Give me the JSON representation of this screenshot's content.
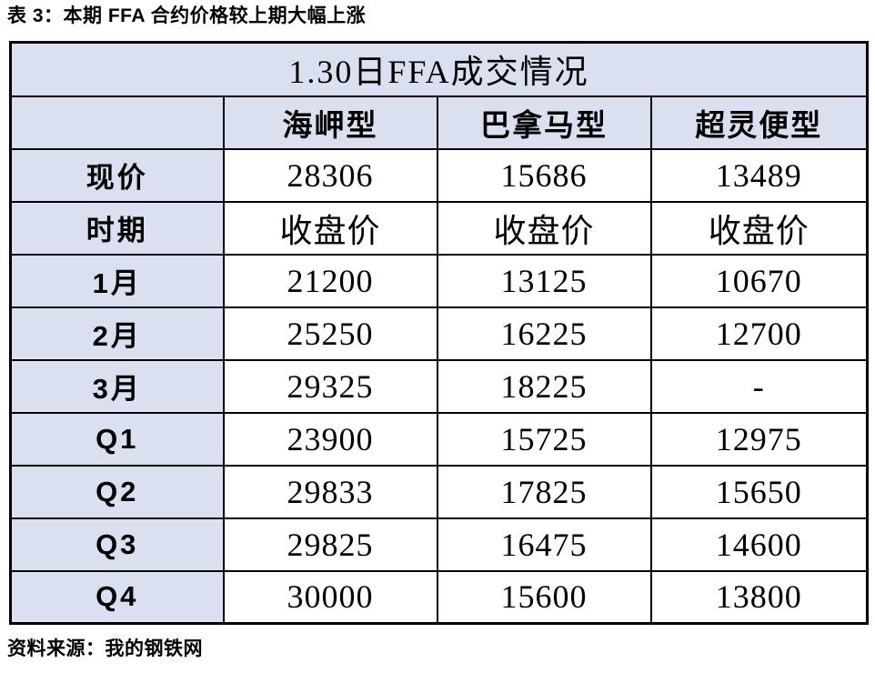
{
  "page": {
    "title": "表 3：本期 FFA 合约价格较上期大幅上涨",
    "source": "资料来源：我的钢铁网"
  },
  "table": {
    "banner": "1.30日FFA成交情况",
    "columns": [
      "",
      "海岬型",
      "巴拿马型",
      "超灵便型"
    ],
    "rows": [
      {
        "label": "现价",
        "values": [
          "28306",
          "15686",
          "13489"
        ]
      },
      {
        "label": "时期",
        "values": [
          "收盘价",
          "收盘价",
          "收盘价"
        ]
      },
      {
        "label": "1月",
        "values": [
          "21200",
          "13125",
          "10670"
        ]
      },
      {
        "label": "2月",
        "values": [
          "25250",
          "16225",
          "12700"
        ]
      },
      {
        "label": "3月",
        "values": [
          "29325",
          "18225",
          "-"
        ]
      },
      {
        "label": "Q1",
        "values": [
          "23900",
          "15725",
          "12975"
        ]
      },
      {
        "label": "Q2",
        "values": [
          "29833",
          "17825",
          "15650"
        ]
      },
      {
        "label": "Q3",
        "values": [
          "29825",
          "16475",
          "14600"
        ]
      },
      {
        "label": "Q4",
        "values": [
          "30000",
          "15600",
          "13800"
        ]
      }
    ],
    "colors": {
      "header_bg": "#dae0ef",
      "border": "#000000",
      "data_bg": "#ffffff",
      "text": "#000000"
    }
  }
}
